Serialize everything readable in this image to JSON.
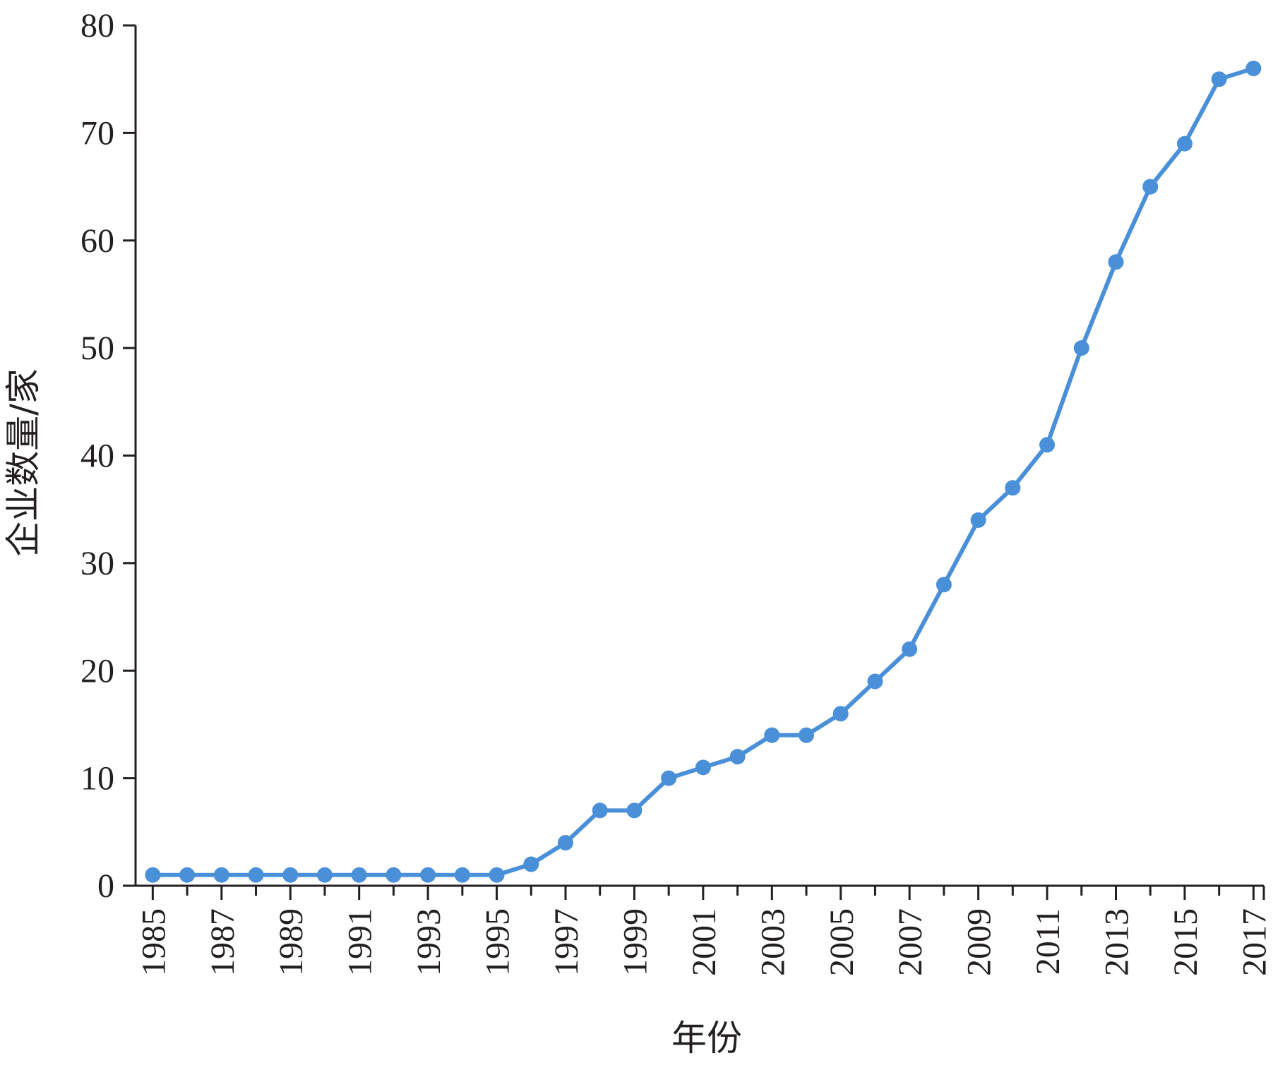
{
  "chart_data": {
    "type": "line",
    "title": "",
    "xlabel": "年份",
    "ylabel": "企业数量/家",
    "xlim": [
      1984.5,
      2017.3
    ],
    "ylim": [
      0,
      80
    ],
    "yticks": [
      0,
      10,
      20,
      30,
      40,
      50,
      60,
      70,
      80
    ],
    "xtick_labels": [
      "1985",
      "1987",
      "1989",
      "1991",
      "1993",
      "1995",
      "1997",
      "1999",
      "2001",
      "2003",
      "2005",
      "2007",
      "2009",
      "2011",
      "2013",
      "2015",
      "2017"
    ],
    "grid": false,
    "legend": "none",
    "color": "#4a90d9",
    "x": [
      1985,
      1986,
      1987,
      1988,
      1989,
      1990,
      1991,
      1992,
      1993,
      1994,
      1995,
      1996,
      1997,
      1998,
      1999,
      2000,
      2001,
      2002,
      2003,
      2004,
      2005,
      2006,
      2007,
      2008,
      2009,
      2010,
      2011,
      2012,
      2013,
      2014,
      2015,
      2016,
      2017
    ],
    "series": [
      {
        "values": [
          1,
          1,
          1,
          1,
          1,
          1,
          1,
          1,
          1,
          1,
          1,
          2,
          4,
          7,
          7,
          10,
          11,
          12,
          14,
          14,
          16,
          19,
          22,
          28,
          34,
          37,
          41,
          50,
          58,
          65,
          69,
          75,
          76
        ]
      }
    ]
  }
}
